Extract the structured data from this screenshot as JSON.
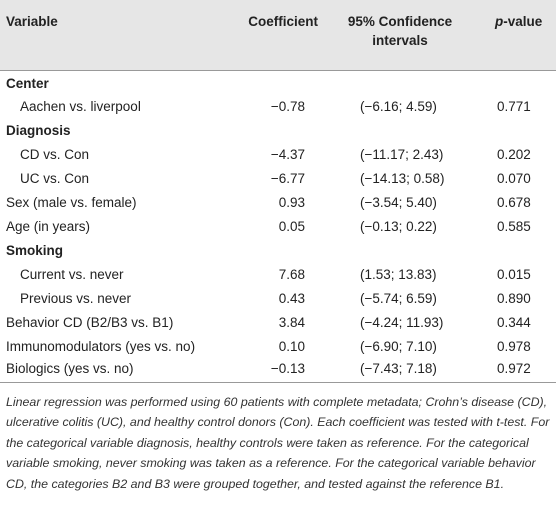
{
  "table": {
    "columns": [
      "Variable",
      "Coefficient",
      "95% Confidence intervals",
      [
        "p",
        "-value"
      ]
    ],
    "rows": [
      {
        "heading": "Center"
      },
      {
        "indent": true,
        "cells": [
          "Aachen vs. liverpool",
          "−0.78",
          "(−6.16; 4.59)",
          "0.771"
        ]
      },
      {
        "heading": "Diagnosis"
      },
      {
        "indent": true,
        "cells": [
          "CD vs. Con",
          "−4.37",
          "(−11.17; 2.43)",
          "0.202"
        ]
      },
      {
        "indent": true,
        "cells": [
          "UC vs. Con",
          "−6.77",
          "(−14.13; 0.58)",
          "0.070"
        ]
      },
      {
        "indent": false,
        "cells": [
          "Sex (male vs. female)",
          "0.93",
          "(−3.54; 5.40)",
          "0.678"
        ]
      },
      {
        "indent": false,
        "cells": [
          "Age (in years)",
          "0.05",
          "(−0.13; 0.22)",
          "0.585"
        ]
      },
      {
        "heading": "Smoking"
      },
      {
        "indent": true,
        "cells": [
          "Current vs. never",
          "7.68",
          "(1.53; 13.83)",
          "0.015"
        ]
      },
      {
        "indent": true,
        "cells": [
          "Previous vs. never",
          "0.43",
          "(−5.74; 6.59)",
          "0.890"
        ]
      },
      {
        "indent": false,
        "cells": [
          "Behavior CD (B2/B3 vs. B1)",
          "3.84",
          "(−4.24; 11.93)",
          "0.344"
        ]
      },
      {
        "indent": false,
        "cells": [
          "Immunomodulators (yes vs. no)",
          "0.10",
          "(−6.90; 7.10)",
          "0.978"
        ]
      },
      {
        "indent": false,
        "cells": [
          "Biologics (yes vs. no)",
          "−0.13",
          "(−7.43; 7.18)",
          "0.972"
        ]
      }
    ]
  },
  "footnote": "Linear regression was performed using 60 patients with complete metadata; Crohn’s disease (CD), ulcerative colitis (UC), and healthy control donors (Con). Each coefficient was tested with t-test. For the categorical variable diagnosis, healthy controls were taken as reference. For the categorical variable smoking, never smoking was taken as a reference. For the categorical variable behavior CD, the categories B2 and B3 were grouped together, and tested against the reference B1."
}
